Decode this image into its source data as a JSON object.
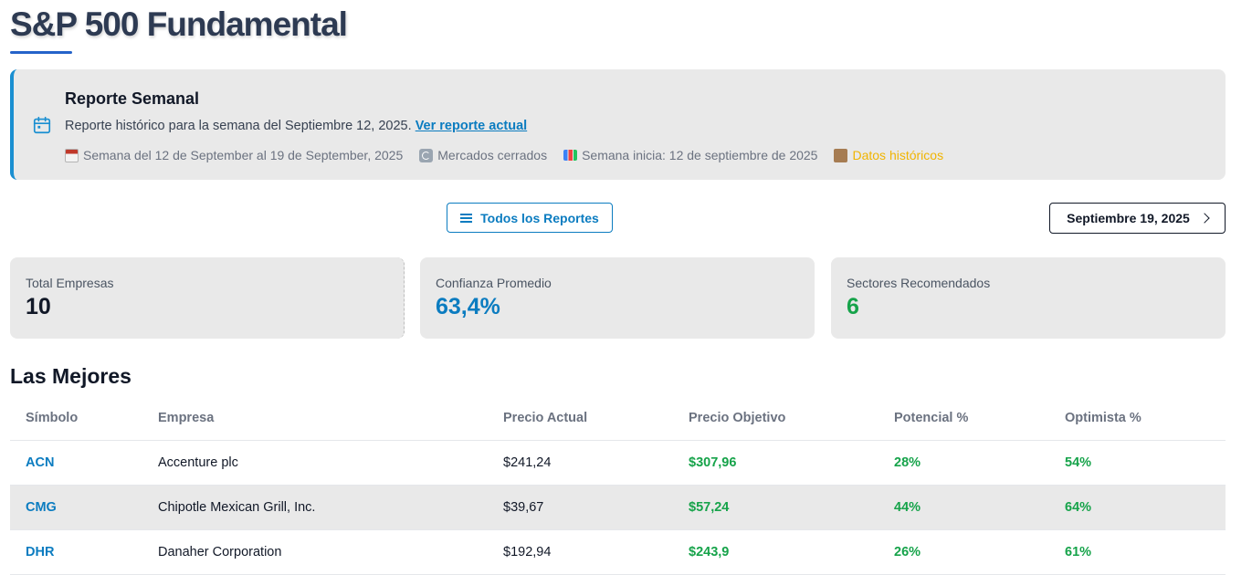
{
  "page_title": "S&P 500 Fundamental",
  "banner": {
    "title": "Reporte Semanal",
    "description": "Reporte histórico para la semana del Septiembre 12, 2025.",
    "link_label": "Ver reporte actual",
    "meta": {
      "week_range": "Semana del 12 de September al 19 de September, 2025",
      "market_status": "Mercados cerrados",
      "week_start": "Semana inicia: 12 de septiembre de 2025",
      "historical": "Datos históricos"
    },
    "accent_color": "#1a8fd1",
    "historical_color": "#f0b400"
  },
  "nav": {
    "all_reports_label": "Todos los Reportes",
    "next_report_label": "Septiembre 19, 2025"
  },
  "stats": {
    "total_companies_label": "Total Empresas",
    "total_companies_value": "10",
    "avg_confidence_label": "Confianza Promedio",
    "avg_confidence_value": "63,4%",
    "sectors_label": "Sectores Recomendados",
    "sectors_value": "6",
    "colors": {
      "total": "#111827",
      "confidence": "#0b7cc0",
      "sectors": "#16a34a"
    }
  },
  "section_title": "Las Mejores",
  "table": {
    "headers": [
      "Símbolo",
      "Empresa",
      "Precio Actual",
      "Precio Objetivo",
      "Potencial %",
      "Optimista %"
    ],
    "rows": [
      {
        "symbol": "ACN",
        "company": "Accenture plc",
        "price": "$241,24",
        "target": "$307,96",
        "potential": "28%",
        "optimistic": "54%"
      },
      {
        "symbol": "CMG",
        "company": "Chipotle Mexican Grill, Inc.",
        "price": "$39,67",
        "target": "$57,24",
        "potential": "44%",
        "optimistic": "64%"
      },
      {
        "symbol": "DHR",
        "company": "Danaher Corporation",
        "price": "$192,94",
        "target": "$243,9",
        "potential": "26%",
        "optimistic": "61%"
      }
    ]
  }
}
